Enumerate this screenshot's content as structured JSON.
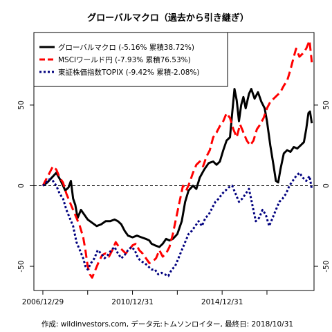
{
  "chart_data": {
    "type": "line",
    "title": "グローバルマクロ（過去から引き継ぎ）",
    "caption": "作成: wildinvestors.com, データ元:トムソンロイター, 最終日: 2018/10/31",
    "xlabel": "",
    "ylabel": "",
    "x_tick_labels": [
      "2006/12/29",
      "2010/12/31",
      "2014/12/31"
    ],
    "xlim": [
      2006.6,
      2019.1
    ],
    "ylim": [
      -65,
      95
    ],
    "y_ticks": [
      -50,
      0,
      50
    ],
    "y_tick_labels": [
      "-50",
      "0",
      "50"
    ],
    "reference_line": 0,
    "grid": false,
    "legend_position": "top-left",
    "series": [
      {
        "name": "グローバルマクロ",
        "legend_label": "グローバルマクロ (-5.16% 累積38.72%)",
        "color": "#000000",
        "line_style": "solid",
        "points": [
          [
            2007.0,
            0
          ],
          [
            2007.2,
            2
          ],
          [
            2007.4,
            5
          ],
          [
            2007.6,
            8
          ],
          [
            2007.8,
            3
          ],
          [
            2008.0,
            -3
          ],
          [
            2008.15,
            -1
          ],
          [
            2008.25,
            3
          ],
          [
            2008.35,
            -8
          ],
          [
            2008.45,
            -12
          ],
          [
            2008.55,
            -20
          ],
          [
            2008.7,
            -15
          ],
          [
            2008.85,
            -18
          ],
          [
            2009.0,
            -21
          ],
          [
            2009.2,
            -23
          ],
          [
            2009.4,
            -25
          ],
          [
            2009.6,
            -24
          ],
          [
            2009.8,
            -22
          ],
          [
            2010.0,
            -22
          ],
          [
            2010.2,
            -21
          ],
          [
            2010.35,
            -22
          ],
          [
            2010.5,
            -24
          ],
          [
            2010.65,
            -28
          ],
          [
            2010.8,
            -31
          ],
          [
            2011.0,
            -32
          ],
          [
            2011.2,
            -31
          ],
          [
            2011.4,
            -32
          ],
          [
            2011.6,
            -33
          ],
          [
            2011.75,
            -34
          ],
          [
            2011.85,
            -36
          ],
          [
            2012.0,
            -37
          ],
          [
            2012.2,
            -38
          ],
          [
            2012.35,
            -36
          ],
          [
            2012.5,
            -33
          ],
          [
            2012.65,
            -34
          ],
          [
            2012.8,
            -33
          ],
          [
            2013.0,
            -30
          ],
          [
            2013.2,
            -22
          ],
          [
            2013.35,
            -10
          ],
          [
            2013.5,
            -3
          ],
          [
            2013.7,
            0
          ],
          [
            2013.85,
            -2
          ],
          [
            2014.0,
            5
          ],
          [
            2014.2,
            10
          ],
          [
            2014.4,
            14
          ],
          [
            2014.6,
            15
          ],
          [
            2014.75,
            13
          ],
          [
            2014.9,
            15
          ],
          [
            2015.05,
            22
          ],
          [
            2015.2,
            28
          ],
          [
            2015.35,
            30
          ],
          [
            2015.45,
            45
          ],
          [
            2015.55,
            60
          ],
          [
            2015.65,
            53
          ],
          [
            2015.75,
            40
          ],
          [
            2015.85,
            50
          ],
          [
            2015.95,
            55
          ],
          [
            2016.05,
            48
          ],
          [
            2016.2,
            57
          ],
          [
            2016.3,
            60
          ],
          [
            2016.45,
            54
          ],
          [
            2016.6,
            58
          ],
          [
            2016.75,
            52
          ],
          [
            2016.9,
            48
          ],
          [
            2017.0,
            40
          ],
          [
            2017.15,
            25
          ],
          [
            2017.3,
            12
          ],
          [
            2017.4,
            3
          ],
          [
            2017.5,
            2
          ],
          [
            2017.6,
            10
          ],
          [
            2017.75,
            20
          ],
          [
            2017.9,
            22
          ],
          [
            2018.05,
            21
          ],
          [
            2018.2,
            24
          ],
          [
            2018.35,
            23
          ],
          [
            2018.5,
            25
          ],
          [
            2018.65,
            27
          ],
          [
            2018.75,
            35
          ],
          [
            2018.85,
            45
          ],
          [
            2018.92,
            46
          ],
          [
            2019.0,
            38.7
          ]
        ]
      },
      {
        "name": "MSCIワールド円",
        "legend_label": "MSCIワールド円 (-7.93% 累積76.53%)",
        "color": "#ff0000",
        "line_style": "dashed",
        "points": [
          [
            2007.0,
            0
          ],
          [
            2007.15,
            4
          ],
          [
            2007.3,
            8
          ],
          [
            2007.45,
            12
          ],
          [
            2007.6,
            10
          ],
          [
            2007.75,
            5
          ],
          [
            2007.9,
            2
          ],
          [
            2008.05,
            -5
          ],
          [
            2008.2,
            -10
          ],
          [
            2008.35,
            -15
          ],
          [
            2008.5,
            -20
          ],
          [
            2008.65,
            -25
          ],
          [
            2008.8,
            -32
          ],
          [
            2008.9,
            -40
          ],
          [
            2009.0,
            -50
          ],
          [
            2009.1,
            -55
          ],
          [
            2009.2,
            -57
          ],
          [
            2009.35,
            -52
          ],
          [
            2009.5,
            -47
          ],
          [
            2009.65,
            -43
          ],
          [
            2009.8,
            -42
          ],
          [
            2009.95,
            -44
          ],
          [
            2010.1,
            -40
          ],
          [
            2010.25,
            -35
          ],
          [
            2010.4,
            -38
          ],
          [
            2010.55,
            -40
          ],
          [
            2010.7,
            -42
          ],
          [
            2010.85,
            -40
          ],
          [
            2011.0,
            -37
          ],
          [
            2011.15,
            -36
          ],
          [
            2011.3,
            -40
          ],
          [
            2011.45,
            -42
          ],
          [
            2011.6,
            -45
          ],
          [
            2011.75,
            -48
          ],
          [
            2011.9,
            -47
          ],
          [
            2012.05,
            -45
          ],
          [
            2012.2,
            -40
          ],
          [
            2012.35,
            -44
          ],
          [
            2012.5,
            -42
          ],
          [
            2012.65,
            -38
          ],
          [
            2012.8,
            -30
          ],
          [
            2012.95,
            -20
          ],
          [
            2013.1,
            -10
          ],
          [
            2013.25,
            0
          ],
          [
            2013.4,
            -3
          ],
          [
            2013.55,
            2
          ],
          [
            2013.7,
            8
          ],
          [
            2013.85,
            13
          ],
          [
            2014.0,
            15
          ],
          [
            2014.15,
            12
          ],
          [
            2014.3,
            18
          ],
          [
            2014.45,
            22
          ],
          [
            2014.6,
            30
          ],
          [
            2014.75,
            33
          ],
          [
            2014.9,
            37
          ],
          [
            2015.05,
            40
          ],
          [
            2015.2,
            45
          ],
          [
            2015.35,
            42
          ],
          [
            2015.5,
            35
          ],
          [
            2015.65,
            30
          ],
          [
            2015.8,
            38
          ],
          [
            2015.95,
            33
          ],
          [
            2016.1,
            28
          ],
          [
            2016.25,
            25
          ],
          [
            2016.4,
            28
          ],
          [
            2016.55,
            35
          ],
          [
            2016.7,
            38
          ],
          [
            2016.85,
            42
          ],
          [
            2017.0,
            48
          ],
          [
            2017.15,
            52
          ],
          [
            2017.3,
            54
          ],
          [
            2017.45,
            56
          ],
          [
            2017.6,
            58
          ],
          [
            2017.75,
            62
          ],
          [
            2017.9,
            65
          ],
          [
            2018.05,
            72
          ],
          [
            2018.2,
            80
          ],
          [
            2018.3,
            85
          ],
          [
            2018.45,
            80
          ],
          [
            2018.6,
            82
          ],
          [
            2018.75,
            85
          ],
          [
            2018.9,
            90
          ],
          [
            2019.0,
            76.5
          ]
        ]
      },
      {
        "name": "東証株価指数TOPIX",
        "legend_label": "東証株価指数TOPIX (-9.42% 累積-2.08%)",
        "color": "#00007f",
        "line_style": "dotted",
        "points": [
          [
            2007.0,
            0
          ],
          [
            2007.15,
            2
          ],
          [
            2007.3,
            4
          ],
          [
            2007.45,
            3
          ],
          [
            2007.6,
            0
          ],
          [
            2007.75,
            -5
          ],
          [
            2007.9,
            -8
          ],
          [
            2008.05,
            -15
          ],
          [
            2008.2,
            -20
          ],
          [
            2008.35,
            -25
          ],
          [
            2008.5,
            -35
          ],
          [
            2008.65,
            -40
          ],
          [
            2008.8,
            -45
          ],
          [
            2008.9,
            -50
          ],
          [
            2009.0,
            -52
          ],
          [
            2009.15,
            -48
          ],
          [
            2009.3,
            -45
          ],
          [
            2009.45,
            -40
          ],
          [
            2009.6,
            -42
          ],
          [
            2009.75,
            -45
          ],
          [
            2009.9,
            -43
          ],
          [
            2010.05,
            -40
          ],
          [
            2010.2,
            -38
          ],
          [
            2010.35,
            -42
          ],
          [
            2010.5,
            -45
          ],
          [
            2010.65,
            -43
          ],
          [
            2010.8,
            -40
          ],
          [
            2010.95,
            -38
          ],
          [
            2011.1,
            -40
          ],
          [
            2011.25,
            -45
          ],
          [
            2011.4,
            -47
          ],
          [
            2011.55,
            -48
          ],
          [
            2011.7,
            -50
          ],
          [
            2011.85,
            -52
          ],
          [
            2012.0,
            -52
          ],
          [
            2012.15,
            -55
          ],
          [
            2012.3,
            -54
          ],
          [
            2012.45,
            -55
          ],
          [
            2012.6,
            -56
          ],
          [
            2012.75,
            -52
          ],
          [
            2012.9,
            -50
          ],
          [
            2013.05,
            -45
          ],
          [
            2013.2,
            -40
          ],
          [
            2013.35,
            -35
          ],
          [
            2013.5,
            -30
          ],
          [
            2013.65,
            -28
          ],
          [
            2013.8,
            -25
          ],
          [
            2013.95,
            -22
          ],
          [
            2014.1,
            -25
          ],
          [
            2014.25,
            -20
          ],
          [
            2014.4,
            -18
          ],
          [
            2014.55,
            -14
          ],
          [
            2014.7,
            -10
          ],
          [
            2014.85,
            -8
          ],
          [
            2015.0,
            -5
          ],
          [
            2015.15,
            -3
          ],
          [
            2015.3,
            -1
          ],
          [
            2015.45,
            0
          ],
          [
            2015.6,
            -5
          ],
          [
            2015.75,
            -10
          ],
          [
            2015.9,
            -8
          ],
          [
            2016.05,
            -5
          ],
          [
            2016.2,
            -2
          ],
          [
            2016.35,
            -12
          ],
          [
            2016.5,
            -22
          ],
          [
            2016.65,
            -20
          ],
          [
            2016.8,
            -15
          ],
          [
            2016.95,
            -18
          ],
          [
            2017.1,
            -25
          ],
          [
            2017.25,
            -20
          ],
          [
            2017.4,
            -15
          ],
          [
            2017.55,
            -10
          ],
          [
            2017.7,
            -8
          ],
          [
            2017.85,
            -5
          ],
          [
            2018.0,
            0
          ],
          [
            2018.15,
            3
          ],
          [
            2018.3,
            6
          ],
          [
            2018.45,
            8
          ],
          [
            2018.6,
            5
          ],
          [
            2018.75,
            3
          ],
          [
            2018.9,
            6
          ],
          [
            2019.0,
            -2.1
          ]
        ]
      }
    ]
  }
}
